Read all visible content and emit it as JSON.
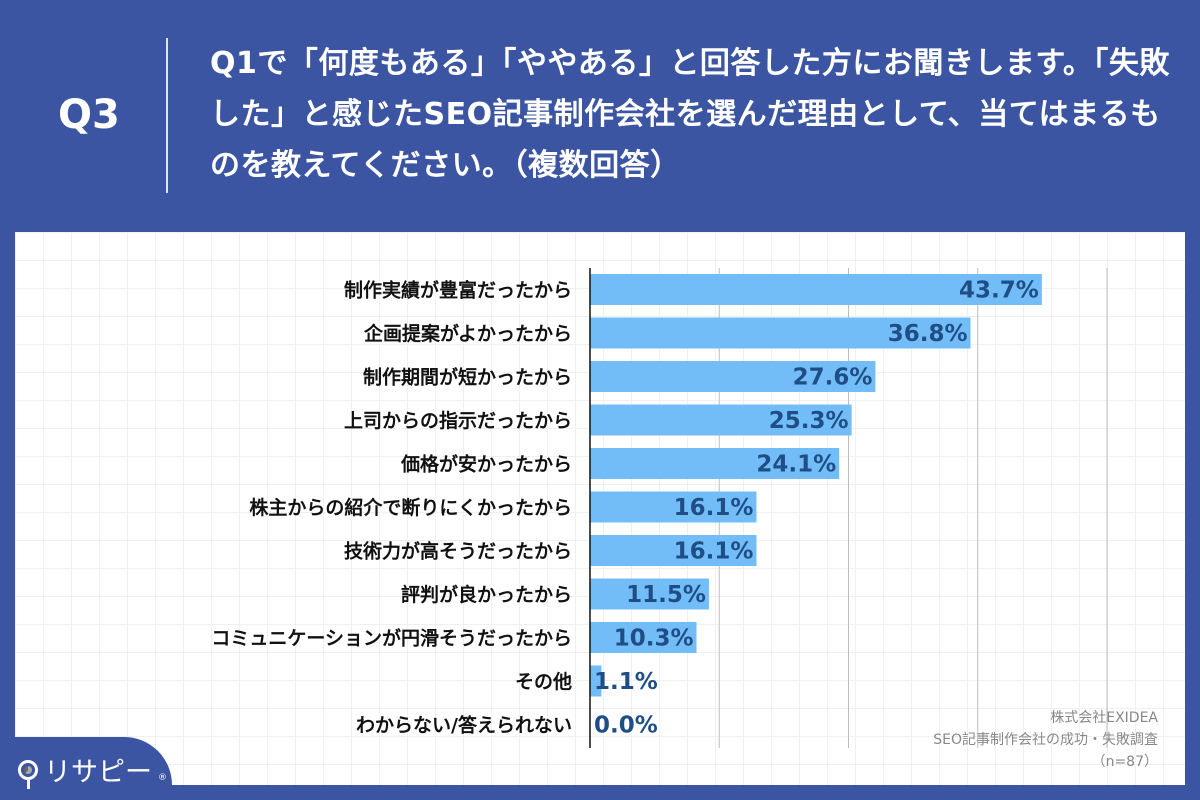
{
  "header": {
    "question_number": "Q3",
    "question_text": "Q1で「何度もある」「ややある」と回答した方にお聞きします。「失敗した」と感じたSEO記事制作会社を選んだ理由として、当てはまるものを教えてください。（複数回答）"
  },
  "colors": {
    "background": "#3b55a3",
    "bar": "#72bdf7",
    "value_label": "#1f4e86"
  },
  "chart_data": {
    "type": "bar",
    "orientation": "horizontal",
    "categories": [
      "制作実績が豊富だったから",
      "企画提案がよかったから",
      "制作期間が短かったから",
      "上司からの指示だったから",
      "価格が安かったから",
      "株主からの紹介で断りにくかったから",
      "技術力が高そうだったから",
      "評判が良かったから",
      "コミュニケーションが円滑そうだったから",
      "その他",
      "わからない/答えられない"
    ],
    "values": [
      43.7,
      36.8,
      27.6,
      25.3,
      24.1,
      16.1,
      16.1,
      11.5,
      10.3,
      1.1,
      0.0
    ],
    "value_labels": [
      "43.7%",
      "36.8%",
      "27.6%",
      "25.3%",
      "24.1%",
      "16.1%",
      "16.1%",
      "11.5%",
      "10.3%",
      "1.1%",
      "0.0%"
    ],
    "xlim": [
      0,
      50
    ],
    "grid": true,
    "unit": "%"
  },
  "source": {
    "company": "株式会社EXIDEA",
    "survey": "SEO記事制作会社の成功・失敗調査",
    "sample": "（n=87）"
  },
  "logo": {
    "text": "リサピー",
    "mark": "®"
  }
}
